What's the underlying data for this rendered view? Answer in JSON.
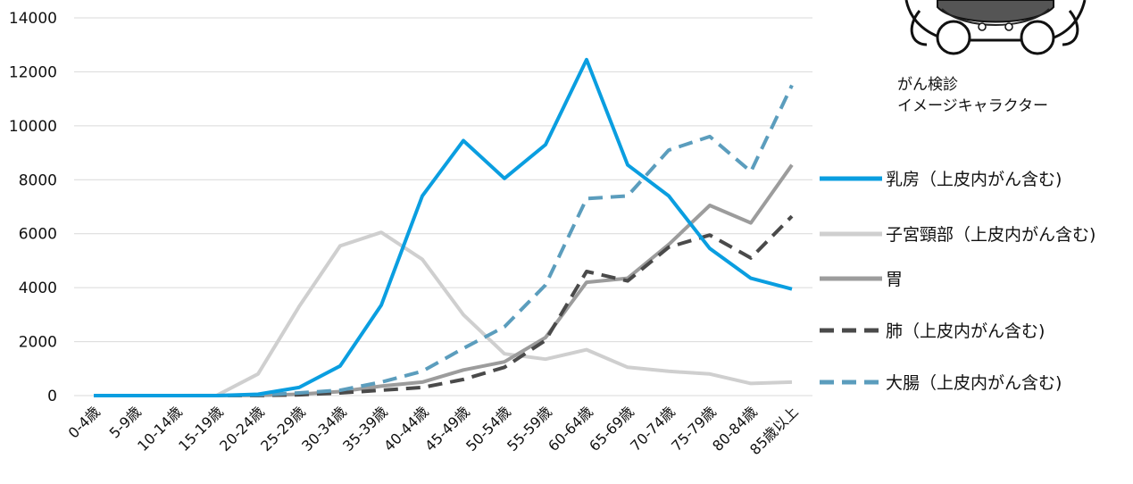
{
  "chart_data": {
    "type": "line",
    "categories": [
      "0-4歳",
      "5-9歳",
      "10-14歳",
      "15-19歳",
      "20-24歳",
      "25-29歳",
      "30-34歳",
      "35-39歳",
      "40-44歳",
      "45-49歳",
      "50-54歳",
      "55-59歳",
      "60-64歳",
      "65-69歳",
      "70-74歳",
      "75-79歳",
      "80-84歳",
      "85歳以上"
    ],
    "ylim": [
      0,
      14000
    ],
    "yticks": [
      "0",
      "2000",
      "4000",
      "6000",
      "8000",
      "10000",
      "12000",
      "14000"
    ],
    "grid": true,
    "legend_position": "right",
    "series": [
      {
        "name": "乳房（上皮内がん含む)",
        "color": "#0a9ee0",
        "dash": "solid",
        "values": [
          0,
          0,
          0,
          0,
          50,
          300,
          1100,
          3350,
          7400,
          9450,
          8050,
          9300,
          12450,
          8550,
          7400,
          5450,
          4350,
          3950
        ]
      },
      {
        "name": "子宮頸部（上皮内がん含む)",
        "color": "#cfcfcf",
        "dash": "solid",
        "values": [
          0,
          0,
          0,
          10,
          800,
          3300,
          5550,
          6050,
          5050,
          3000,
          1550,
          1350,
          1700,
          1050,
          900,
          800,
          450,
          500
        ]
      },
      {
        "name": "胃",
        "color": "#9c9c9c",
        "dash": "solid",
        "values": [
          0,
          0,
          0,
          0,
          10,
          50,
          150,
          350,
          500,
          950,
          1250,
          2150,
          4200,
          4350,
          5600,
          7050,
          6400,
          8550
        ]
      },
      {
        "name": "肺（上皮内がん含む)",
        "color": "#4a4a4a",
        "dash": "dashed",
        "values": [
          0,
          0,
          0,
          0,
          0,
          30,
          100,
          200,
          300,
          600,
          1050,
          2050,
          4600,
          4250,
          5500,
          5950,
          5100,
          6650
        ]
      },
      {
        "name": "大腸（上皮内がん含む)",
        "color": "#5b9dbd",
        "dash": "dashed",
        "values": [
          0,
          0,
          0,
          0,
          20,
          100,
          200,
          500,
          900,
          1750,
          2550,
          4100,
          7300,
          7400,
          9100,
          9600,
          8300,
          11500
        ]
      }
    ]
  },
  "character": {
    "caption_line1": "がん検診",
    "caption_line2": "イメージキャラクター"
  }
}
